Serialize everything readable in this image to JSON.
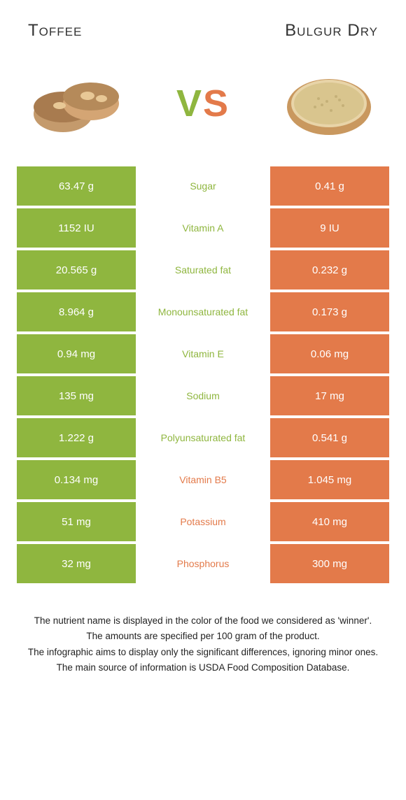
{
  "leftTitle": "Toffee",
  "rightTitle": "Bulgur dry",
  "vsLetters": {
    "v": "V",
    "s": "S"
  },
  "colors": {
    "green": "#8fb63f",
    "orange": "#e37a4a",
    "leftCellBg": "#8fb63f",
    "rightCellBg": "#e37a4a",
    "greenText": "#8fb63f",
    "orangeText": "#e37a4a"
  },
  "rows": [
    {
      "left": "63.47 g",
      "label": "Sugar",
      "right": "0.41 g",
      "winner": "left"
    },
    {
      "left": "1152 IU",
      "label": "Vitamin A",
      "right": "9 IU",
      "winner": "left"
    },
    {
      "left": "20.565 g",
      "label": "Saturated fat",
      "right": "0.232 g",
      "winner": "left"
    },
    {
      "left": "8.964 g",
      "label": "Monounsaturated fat",
      "right": "0.173 g",
      "winner": "left"
    },
    {
      "left": "0.94 mg",
      "label": "Vitamin E",
      "right": "0.06 mg",
      "winner": "left"
    },
    {
      "left": "135 mg",
      "label": "Sodium",
      "right": "17 mg",
      "winner": "left"
    },
    {
      "left": "1.222 g",
      "label": "Polyunsaturated fat",
      "right": "0.541 g",
      "winner": "left"
    },
    {
      "left": "0.134 mg",
      "label": "Vitamin B5",
      "right": "1.045 mg",
      "winner": "right"
    },
    {
      "left": "51 mg",
      "label": "Potassium",
      "right": "410 mg",
      "winner": "right"
    },
    {
      "left": "32 mg",
      "label": "Phosphorus",
      "right": "300 mg",
      "winner": "right"
    }
  ],
  "footer": [
    "The nutrient name is displayed in the color of the food we considered as 'winner'.",
    "The amounts are specified per 100 gram of the product.",
    "The infographic aims to display only the significant differences, ignoring minor ones.",
    "The main source of information is USDA Food Composition Database."
  ]
}
